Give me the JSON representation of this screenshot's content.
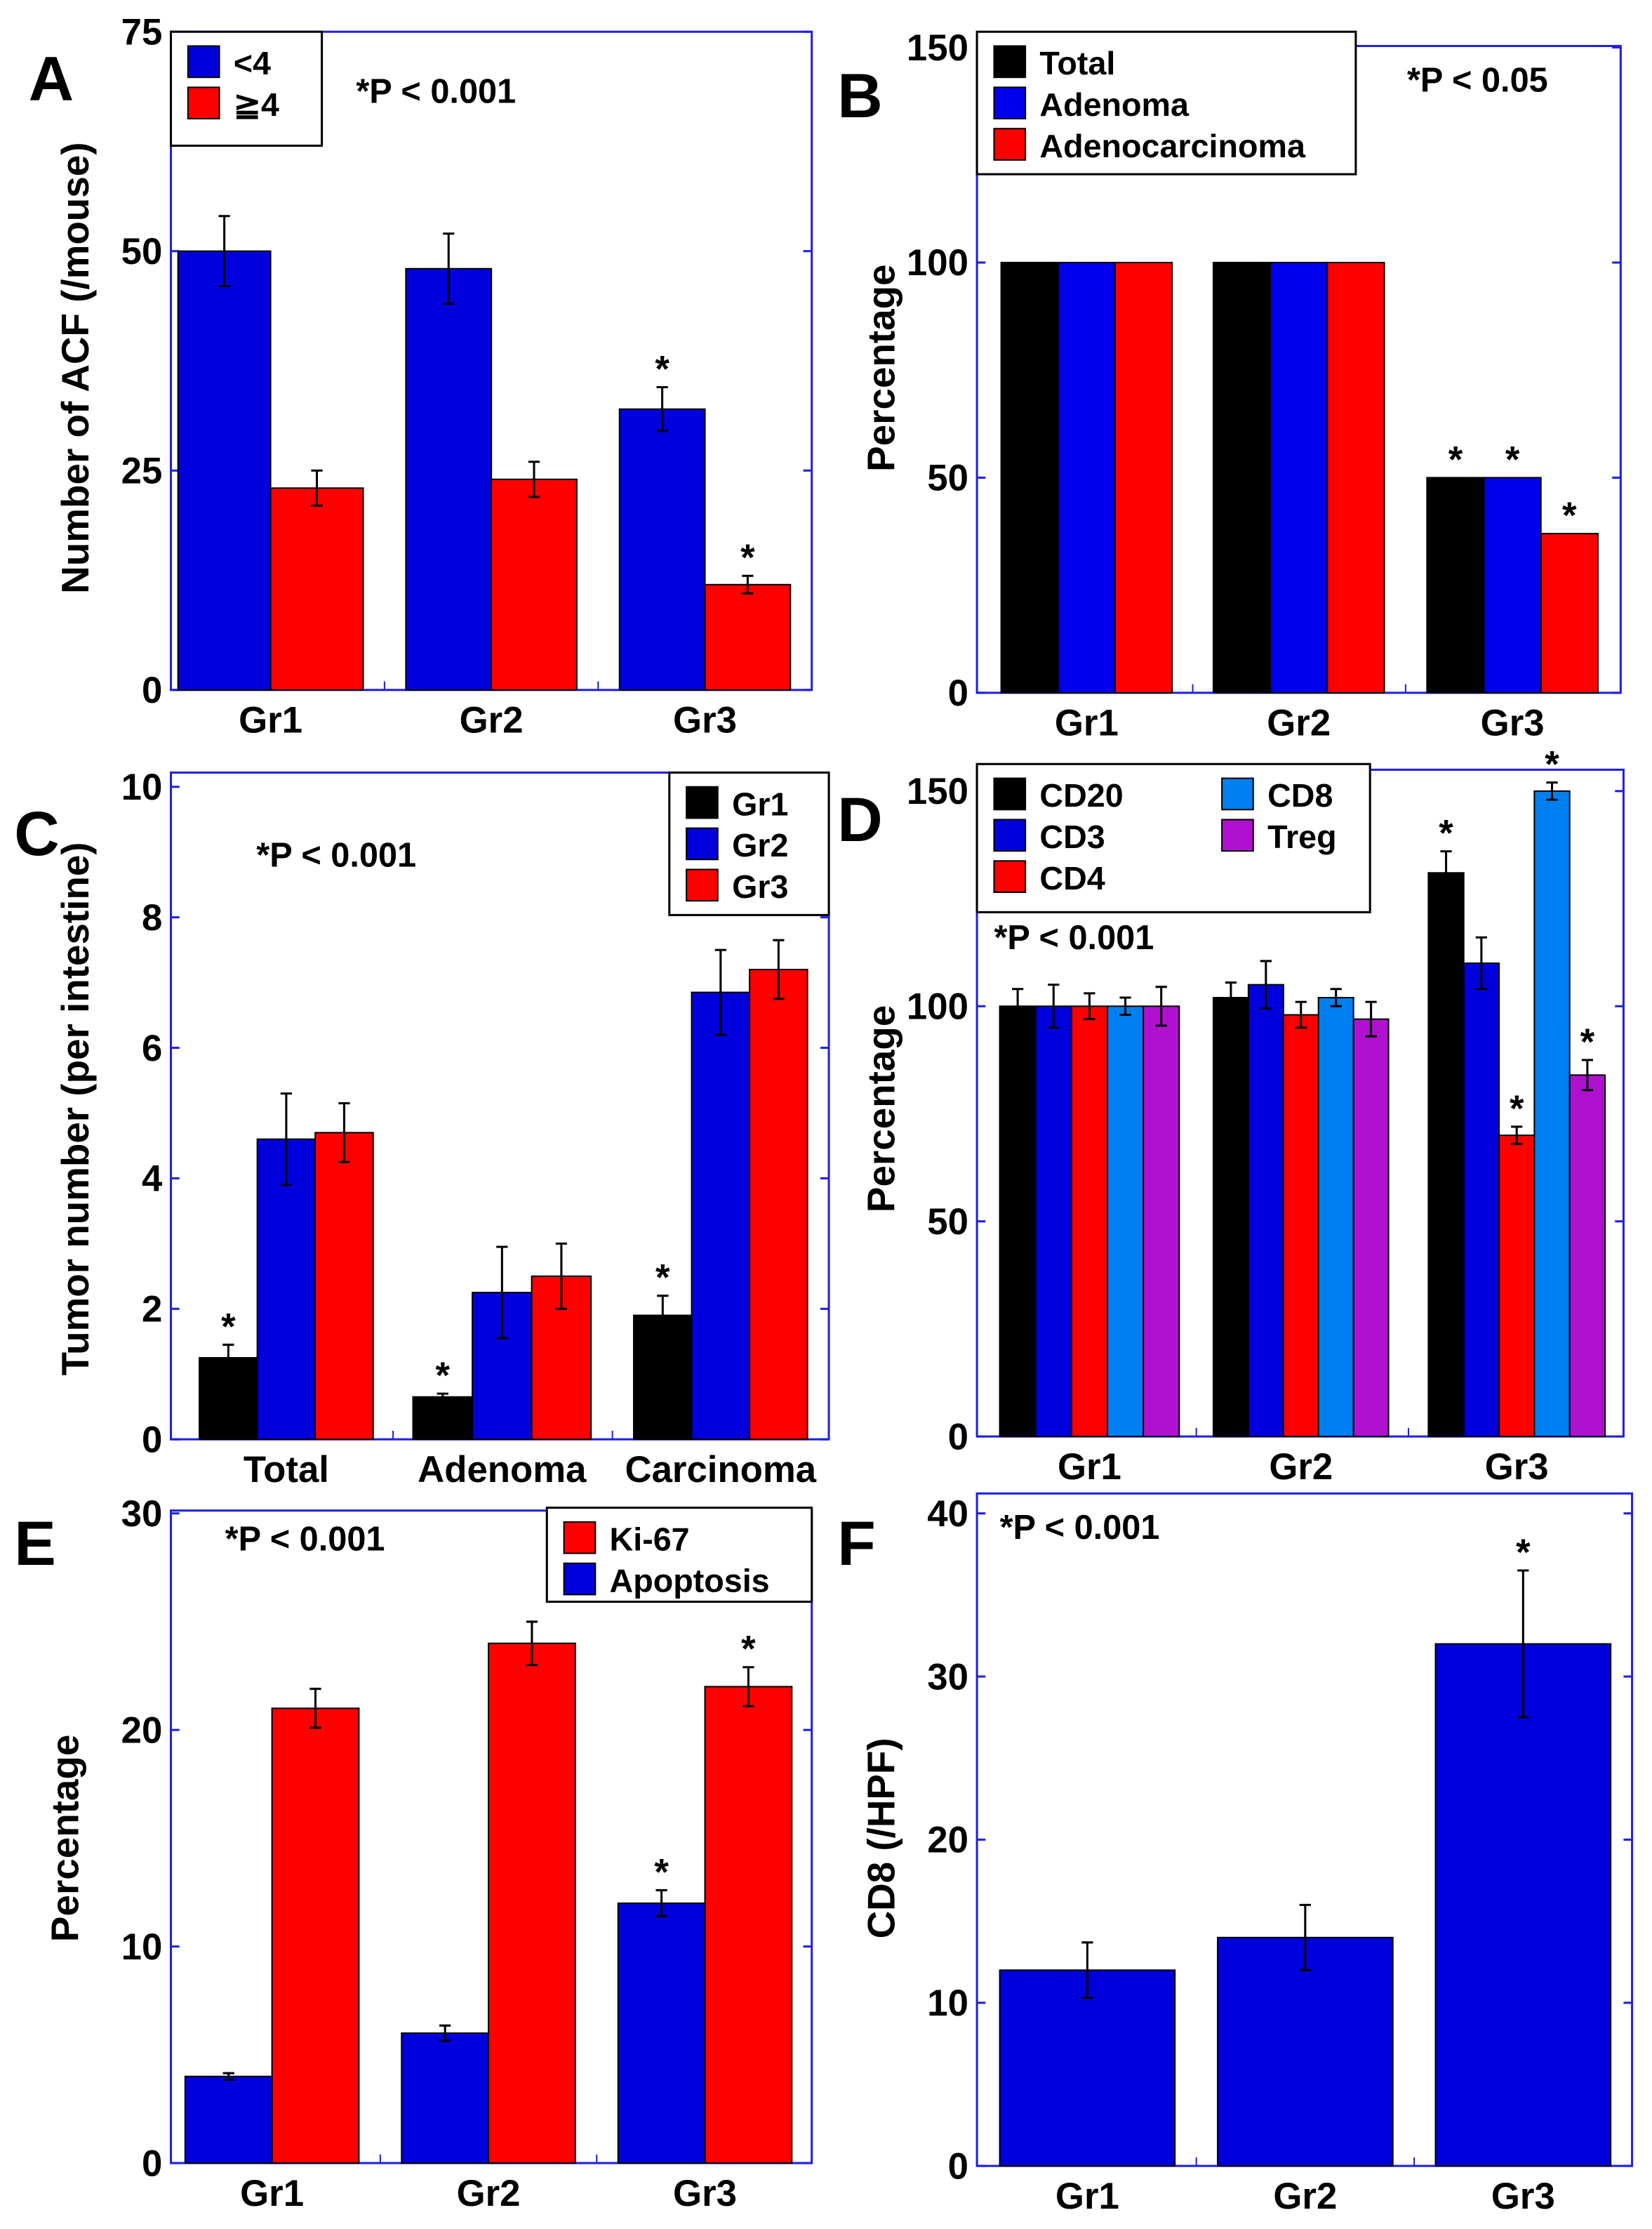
{
  "chart_data": [
    {
      "panel": "A",
      "type": "bar",
      "ylabel": "Number of ACF (/mouse)",
      "ylim": [
        0,
        75
      ],
      "yticks": [
        0,
        25,
        50,
        75
      ],
      "categories": [
        "Gr1",
        "Gr2",
        "Gr3"
      ],
      "annotation": "*P < 0.001",
      "series": [
        {
          "name": "<4",
          "color": "#0000dd",
          "values": [
            50,
            48,
            32
          ],
          "errors": [
            4,
            4,
            2.5
          ],
          "significant": [
            false,
            false,
            true
          ]
        },
        {
          "name": "≧4",
          "color": "#ff0000",
          "values": [
            23,
            24,
            12
          ],
          "errors": [
            2,
            2,
            1
          ],
          "significant": [
            false,
            false,
            true
          ]
        }
      ]
    },
    {
      "panel": "B",
      "type": "bar",
      "ylabel": "Percentage",
      "ylim": [
        0,
        150
      ],
      "yticks": [
        0,
        50,
        100,
        150
      ],
      "categories": [
        "Gr1",
        "Gr2",
        "Gr3"
      ],
      "annotation": "*P < 0.05",
      "series": [
        {
          "name": "Total",
          "color": "#000000",
          "values": [
            100,
            100,
            50
          ],
          "errors": [
            0,
            0,
            0
          ],
          "significant": [
            false,
            false,
            true
          ]
        },
        {
          "name": "Adenoma",
          "color": "#0000ee",
          "values": [
            100,
            100,
            50
          ],
          "errors": [
            0,
            0,
            0
          ],
          "significant": [
            false,
            false,
            true
          ]
        },
        {
          "name": "Adenocarcinoma",
          "color": "#ff0000",
          "values": [
            100,
            100,
            37
          ],
          "errors": [
            0,
            0,
            0
          ],
          "significant": [
            false,
            false,
            true
          ]
        }
      ]
    },
    {
      "panel": "C",
      "type": "bar",
      "ylabel": "Tumor number (per intestine)",
      "ylim": [
        0,
        10
      ],
      "yticks": [
        0,
        2,
        4,
        6,
        8,
        10
      ],
      "categories": [
        "Total",
        "Adenoma",
        "Carcinoma"
      ],
      "annotation": "*P < 0.001",
      "series": [
        {
          "name": "Gr1",
          "color": "#000000",
          "values": [
            1.25,
            0.65,
            1.9
          ],
          "errors": [
            0.2,
            0.05,
            0.3
          ],
          "significant": [
            true,
            true,
            true
          ]
        },
        {
          "name": "Gr2",
          "color": "#0000dd",
          "values": [
            4.6,
            2.25,
            6.85
          ],
          "errors": [
            0.7,
            0.7,
            0.65
          ],
          "significant": [
            false,
            false,
            false
          ]
        },
        {
          "name": "Gr3",
          "color": "#ff0000",
          "values": [
            4.7,
            2.5,
            7.2
          ],
          "errors": [
            0.45,
            0.5,
            0.45
          ],
          "significant": [
            false,
            false,
            false
          ]
        }
      ]
    },
    {
      "panel": "D",
      "type": "bar",
      "ylabel": "Percentage",
      "ylim": [
        0,
        150
      ],
      "yticks": [
        0,
        50,
        100,
        150
      ],
      "categories": [
        "Gr1",
        "Gr2",
        "Gr3"
      ],
      "annotation": "*P < 0.001",
      "series": [
        {
          "name": "CD20",
          "color": "#000000",
          "values": [
            100,
            102,
            131
          ],
          "errors": [
            4,
            3.5,
            5
          ],
          "significant": [
            false,
            false,
            true
          ]
        },
        {
          "name": "CD3",
          "color": "#0000dd",
          "values": [
            100,
            105,
            110
          ],
          "errors": [
            5,
            5.5,
            6
          ],
          "significant": [
            false,
            false,
            false
          ]
        },
        {
          "name": "CD4",
          "color": "#ff0000",
          "values": [
            100,
            98,
            70
          ],
          "errors": [
            3,
            3,
            2
          ],
          "significant": [
            false,
            false,
            true
          ]
        },
        {
          "name": "CD8",
          "color": "#0080f0",
          "values": [
            100,
            102,
            150
          ],
          "errors": [
            2,
            2,
            2
          ],
          "significant": [
            false,
            false,
            true
          ]
        },
        {
          "name": "Treg",
          "color": "#b010d0",
          "values": [
            100,
            97,
            84
          ],
          "errors": [
            4.5,
            4,
            3.5
          ],
          "significant": [
            false,
            false,
            true
          ]
        }
      ]
    },
    {
      "panel": "E",
      "type": "bar",
      "ylabel": "Percentage",
      "ylim": [
        0,
        30
      ],
      "yticks": [
        0,
        10,
        20,
        30
      ],
      "categories": [
        "Gr1",
        "Gr2",
        "Gr3"
      ],
      "annotation": "*P < 0.001",
      "series": [
        {
          "name": "Apoptosis",
          "color": "#0000dd",
          "values": [
            4,
            6,
            12
          ],
          "errors": [
            0.15,
            0.35,
            0.6
          ],
          "significant": [
            false,
            false,
            true
          ]
        },
        {
          "name": "Ki-67",
          "color": "#ff0000",
          "values": [
            21,
            24,
            22
          ],
          "errors": [
            0.9,
            1,
            0.9
          ],
          "significant": [
            false,
            false,
            true
          ]
        }
      ],
      "legend_order": [
        "Ki-67",
        "Apoptosis"
      ]
    },
    {
      "panel": "F",
      "type": "bar",
      "ylabel": "CD8 (/HPF)",
      "ylim": [
        0,
        40
      ],
      "yticks": [
        0,
        10,
        20,
        30,
        40
      ],
      "categories": [
        "Gr1",
        "Gr2",
        "Gr3"
      ],
      "annotation": "*P < 0.001",
      "series": [
        {
          "name": "CD8",
          "color": "#0000dd",
          "values": [
            12,
            14,
            32
          ],
          "errors": [
            1.7,
            2,
            4.5
          ],
          "significant": [
            false,
            false,
            true
          ]
        }
      ]
    }
  ]
}
